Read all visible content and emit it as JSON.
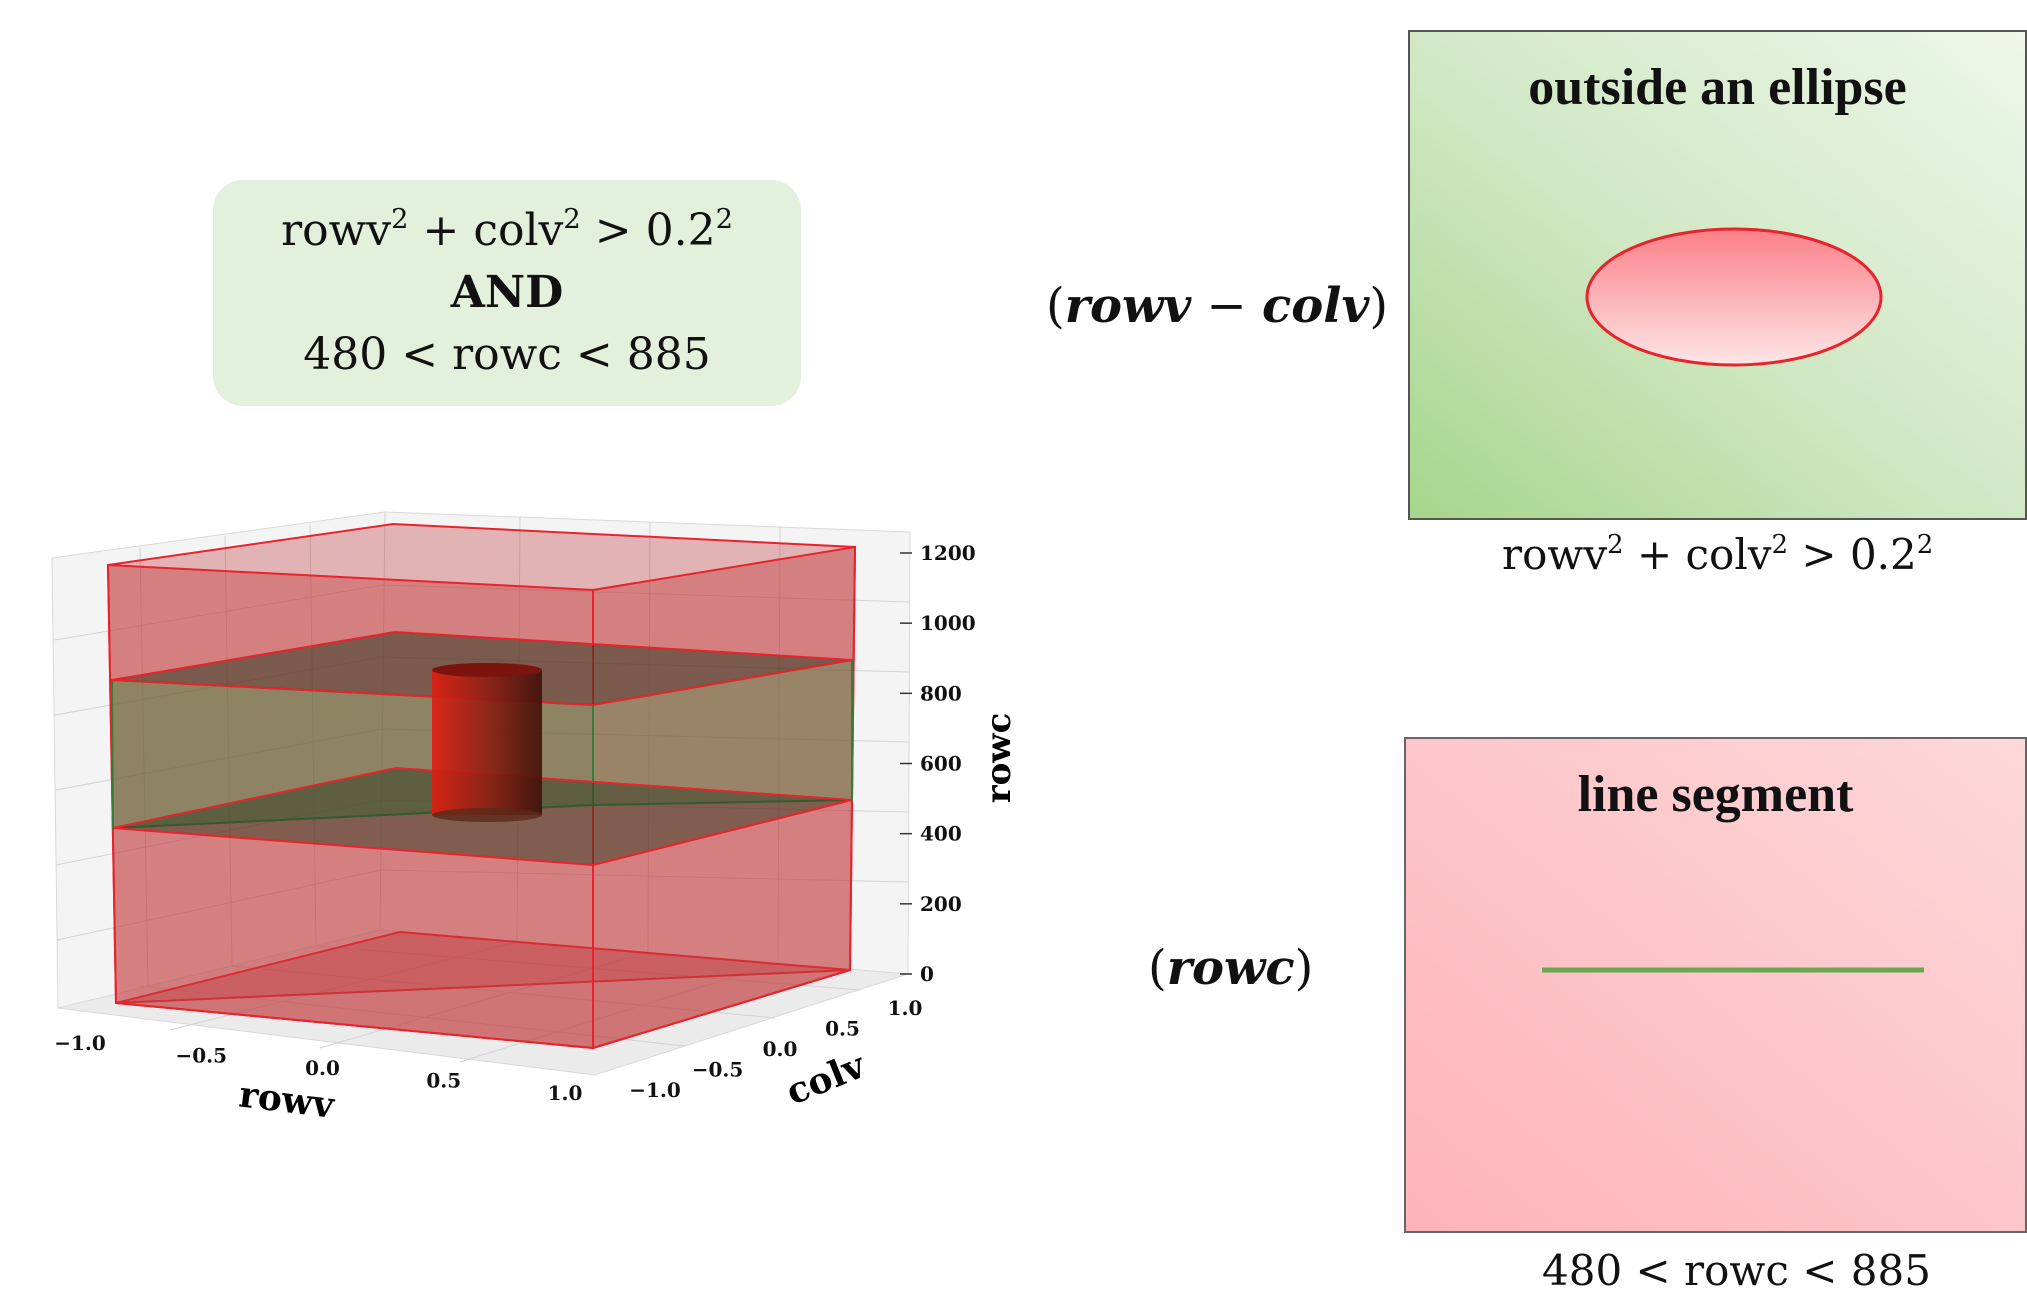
{
  "condition_box": {
    "line1": {
      "a": "rowv",
      "b": "+ colv",
      "c": ">  0.2",
      "exp": "2"
    },
    "line2": "AND",
    "line3": "480 < rowc < 885"
  },
  "labels": {
    "rowv_colv": {
      "open": "(",
      "a": "rowv",
      "minus": " − ",
      "b": "colv",
      "close": ")"
    },
    "rowc": {
      "open": "(",
      "a": "rowc",
      "close": ")"
    }
  },
  "panels": {
    "ellipse": {
      "title": "outside an ellipse",
      "caption": {
        "a": "rowv",
        "b": "+ colv",
        "c": ">  0.2",
        "exp": "2"
      },
      "fill_color": "#fdd3d5",
      "stroke_color": "#e8232b"
    },
    "segment": {
      "title": "line segment",
      "caption": "480 < rowc < 885",
      "line_color": "#6aa84f"
    }
  },
  "chart_data": {
    "type": "3d-region",
    "x_axis": {
      "label": "rowv",
      "ticks": [
        "−1.0",
        "−0.5",
        "0.0",
        "0.5",
        "1.0"
      ],
      "range": [
        -1,
        1
      ]
    },
    "y_axis": {
      "label": "colv",
      "ticks": [
        "−1.0",
        "−0.5",
        "0.0",
        "0.5",
        "1.0"
      ],
      "range": [
        -1,
        1
      ]
    },
    "z_axis": {
      "label": "rowc",
      "ticks": [
        "0",
        "200",
        "400",
        "600",
        "800",
        "1000",
        "1200"
      ],
      "range": [
        0,
        1200
      ]
    },
    "slab": {
      "rowc_min": 480,
      "rowc_max": 885
    },
    "cylinder_radius": 0.2,
    "colors": {
      "box": "#c0393b",
      "slab": "#2e8b3a",
      "cylinder": "#b22818"
    }
  }
}
